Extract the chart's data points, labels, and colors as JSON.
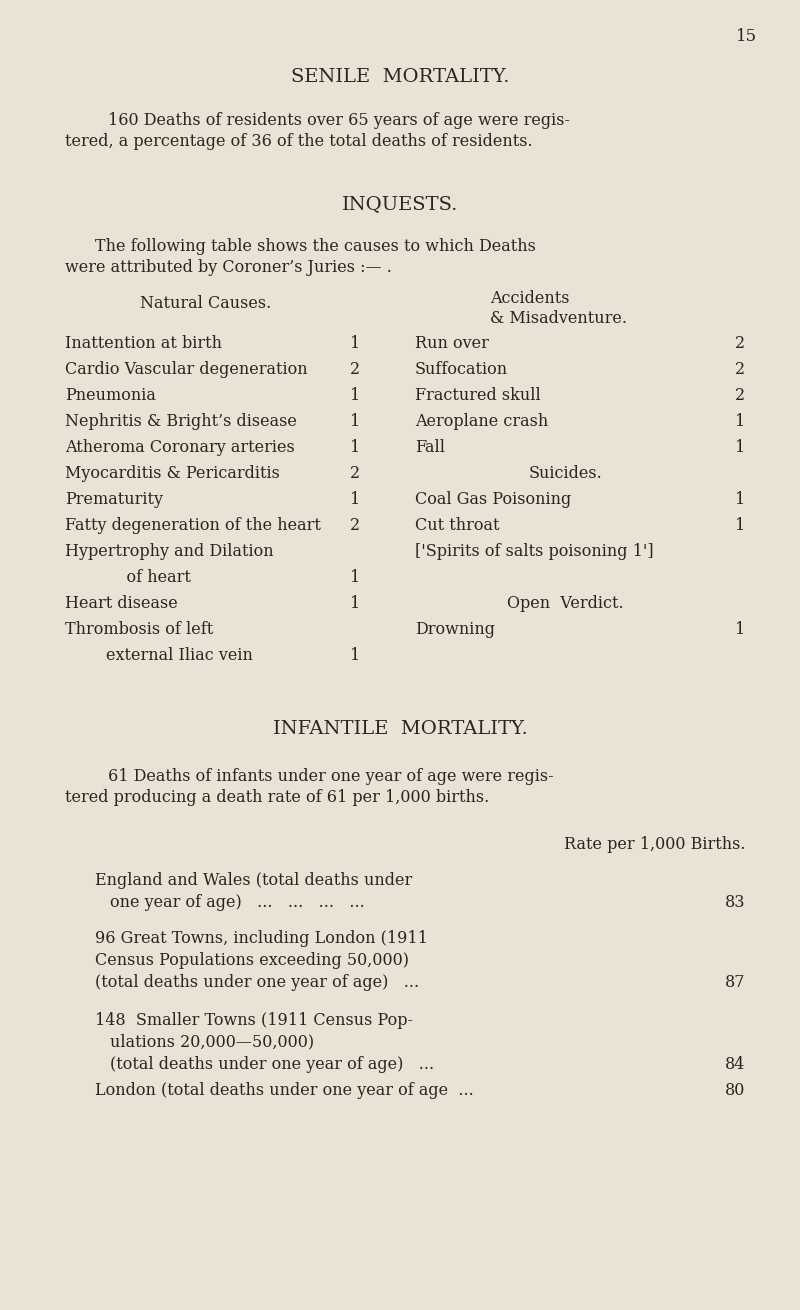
{
  "bg_color": "#e8e3d5",
  "text_color": "#2a2520",
  "page_number": "15",
  "title1": "SENILE  MORTALITY.",
  "senile_para_line1": "160 Deaths of residents over 65 years of age were regis-",
  "senile_para_line2": "tered, a percentage of 36 of the total deaths of residents.",
  "title2": "INQUESTS.",
  "inq_line1": "The following table shows the causes to which Deaths",
  "inq_line2": "were attributed by Coroner’s Juries :— .",
  "col_header_left": "Natural Causes.",
  "col_header_right_line1": "Accidents",
  "col_header_right_line2": "& Misadventure.",
  "natural_causes": [
    [
      "Inattention at birth",
      "1"
    ],
    [
      "Cardio Vascular degeneration",
      "2"
    ],
    [
      "Pneumonia",
      "1"
    ],
    [
      "Nephritis & Bright’s disease",
      "1"
    ],
    [
      "Atheroma Coronary arteries",
      "1"
    ],
    [
      "Myocarditis & Pericarditis",
      "2"
    ],
    [
      "Prematurity",
      "1"
    ],
    [
      "Fatty degeneration of the heart",
      "2"
    ],
    [
      "Hypertrophy and Dilation",
      ""
    ],
    [
      "            of heart",
      "1"
    ],
    [
      "Heart disease",
      "1"
    ],
    [
      "Thrombosis of left",
      ""
    ],
    [
      "        external Iliac vein",
      "1"
    ]
  ],
  "accidents": [
    [
      "Run over",
      "2"
    ],
    [
      "Suffocation",
      "2"
    ],
    [
      "Fractured skull",
      "2"
    ],
    [
      "Aeroplane crash",
      "1"
    ],
    [
      "Fall",
      "1"
    ]
  ],
  "suicides_header": "Suicides.",
  "suicides": [
    [
      "Coal Gas Poisoning",
      "1"
    ],
    [
      "Cut throat",
      "1"
    ],
    [
      "Spirits of salts poisoning 1"
    ]
  ],
  "open_verdict_header": "Open  Verdict.",
  "drowning_line": "Drowning",
  "drowning_num": "1",
  "title3": "INFANTILE  MORTALITY.",
  "inf_para_line1": "61 Deaths of infants under one year of age were regis-",
  "inf_para_line2": "tered producing a death rate of 61 per 1,000 births.",
  "rate_header": "Rate per 1,000 Births.",
  "inf_row1_line1": "England and Wales (total deaths under",
  "inf_row1_line2": "    one year of age)   ...   ...   ...   ...  83",
  "inf_row2_line1": "96 Great Towns, including London (1911",
  "inf_row2_line2": "Census Populations exceeding 50,000)",
  "inf_row2_line3": "(total deaths under one year of age)   ...  87",
  "inf_row3_line1": "148  Smaller Towns (1911 Census Pop-",
  "inf_row3_line2": "    ulations 20,000—50,000)",
  "inf_row3_line3": "    (total deaths under one year of age)   ...  84",
  "inf_row4_line1": "London (total deaths under one year of age  ...  80",
  "inf_val1": "83",
  "inf_val2": "87",
  "inf_val3": "84",
  "inf_val4": "80"
}
